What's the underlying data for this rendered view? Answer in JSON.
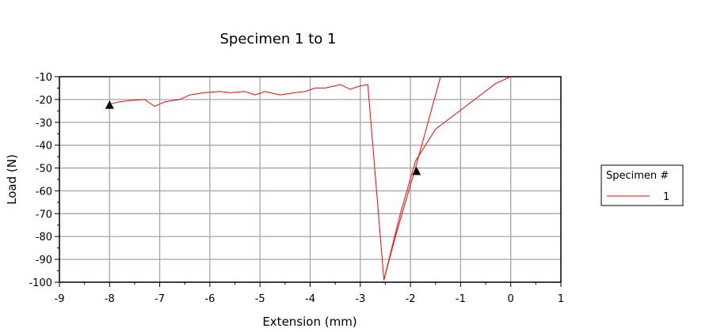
{
  "chart_data": {
    "type": "line",
    "title": "Specimen 1 to 1",
    "xlabel": "Extension (mm)",
    "ylabel": "Load (N)",
    "xlim": [
      -9,
      1
    ],
    "ylim": [
      -100,
      -10
    ],
    "x_ticks": [
      -9,
      -8,
      -7,
      -6,
      -5,
      -4,
      -3,
      -2,
      -1,
      0,
      1
    ],
    "y_ticks": [
      -10,
      -20,
      -30,
      -40,
      -50,
      -60,
      -70,
      -80,
      -90,
      -100
    ],
    "grid": true,
    "legend": {
      "title": "Specimen #",
      "position": "right"
    },
    "series": [
      {
        "name": "1",
        "color": "#ff0000",
        "x": [
          -8.0,
          -7.8,
          -7.6,
          -7.3,
          -7.1,
          -6.9,
          -6.6,
          -6.4,
          -6.1,
          -5.8,
          -5.6,
          -5.3,
          -5.1,
          -4.9,
          -4.6,
          -4.3,
          -4.1,
          -3.9,
          -3.7,
          -3.4,
          -3.2,
          -3.0,
          -2.85,
          -2.53,
          -2.3,
          -2.1,
          -1.9,
          -1.65,
          -1.4
        ],
        "y": [
          -22,
          -21,
          -20.5,
          -20,
          -23,
          -21,
          -20,
          -18,
          -17,
          -16.5,
          -17,
          -16.5,
          -18,
          -16.5,
          -18,
          -17,
          -16.5,
          -15,
          -15,
          -13.5,
          -15.5,
          -14,
          -13.5,
          -99,
          -80,
          -65,
          -50,
          -30,
          -10
        ]
      },
      {
        "name": "",
        "color": "#ff0000",
        "x": [
          -2.53,
          -2.2,
          -1.9,
          -1.5,
          -1.2,
          -0.9,
          -0.6,
          -0.3,
          0.0
        ],
        "y": [
          -99,
          -70,
          -47,
          -33,
          -28,
          -23,
          -18,
          -13,
          -10
        ]
      }
    ],
    "markers": [
      {
        "x": -8.0,
        "y": -22.5,
        "shape": "triangle"
      },
      {
        "x": -1.88,
        "y": -51.5,
        "shape": "triangle"
      }
    ]
  }
}
